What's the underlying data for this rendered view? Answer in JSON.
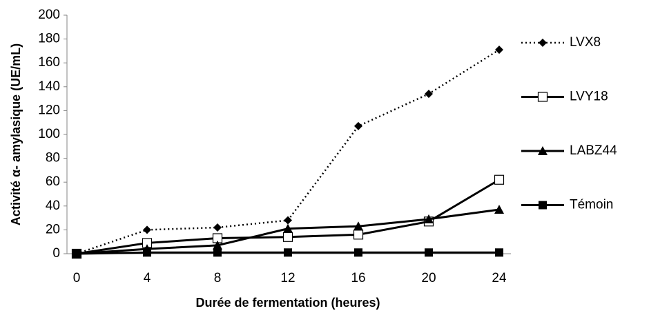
{
  "chart_data": {
    "type": "line",
    "x_label": "Durée de fermentation (heures)",
    "y_label": "Activité α- amylasique (UE/mL)",
    "categories": [
      "0",
      "4",
      "8",
      "12",
      "16",
      "20",
      "24"
    ],
    "ylim": [
      0,
      200
    ],
    "yticks": [
      0,
      20,
      40,
      60,
      80,
      100,
      120,
      140,
      160,
      180,
      200
    ],
    "legend": "right",
    "series": [
      {
        "name": "LVX8",
        "color": "#000000",
        "dash": "dotted",
        "marker": "diamond",
        "values": [
          0,
          20,
          22,
          28,
          107,
          134,
          171
        ]
      },
      {
        "name": "LVY18",
        "color": "#000000",
        "dash": "solid",
        "marker": "open-square",
        "values": [
          0,
          9,
          13,
          14,
          16,
          27,
          62
        ]
      },
      {
        "name": "LABZ44",
        "color": "#000000",
        "dash": "solid",
        "marker": "triangle",
        "values": [
          0,
          4,
          7,
          21,
          23,
          29,
          37
        ]
      },
      {
        "name": "Témoin",
        "color": "#000000",
        "dash": "solid",
        "marker": "square",
        "values": [
          0,
          1,
          1,
          1,
          1,
          1,
          1
        ]
      }
    ]
  }
}
